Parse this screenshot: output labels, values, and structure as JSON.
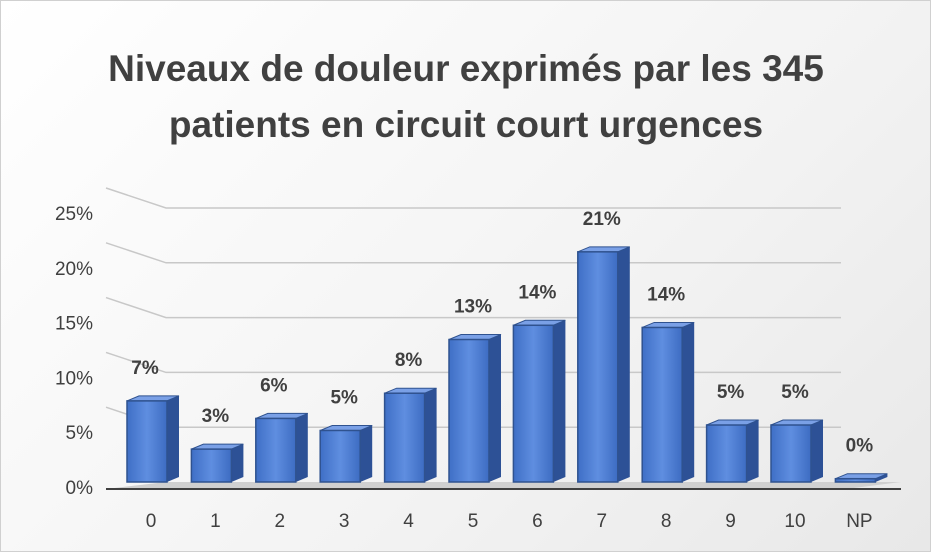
{
  "chart_data": {
    "type": "bar",
    "title": "Niveaux de douleur exprimés par les 345 patients en circuit court urgences",
    "categories": [
      "0",
      "1",
      "2",
      "3",
      "4",
      "5",
      "6",
      "7",
      "8",
      "9",
      "10",
      "NP"
    ],
    "values": [
      7.4,
      3.0,
      5.8,
      4.7,
      8.1,
      13.0,
      14.3,
      21.0,
      14.1,
      5.2,
      5.2,
      0.3
    ],
    "value_labels": [
      "7%",
      "3%",
      "6%",
      "5%",
      "8%",
      "13%",
      "14%",
      "21%",
      "14%",
      "5%",
      "5%",
      "0%"
    ],
    "color": "#4472c4",
    "ylim": [
      0,
      25
    ],
    "yticks": [
      {
        "value": 0,
        "label": "0%"
      },
      {
        "value": 5,
        "label": "5%"
      },
      {
        "value": 10,
        "label": "10%"
      },
      {
        "value": 15,
        "label": "15%"
      },
      {
        "value": 20,
        "label": "20%"
      },
      {
        "value": 25,
        "label": "25%"
      }
    ],
    "grid": true
  }
}
